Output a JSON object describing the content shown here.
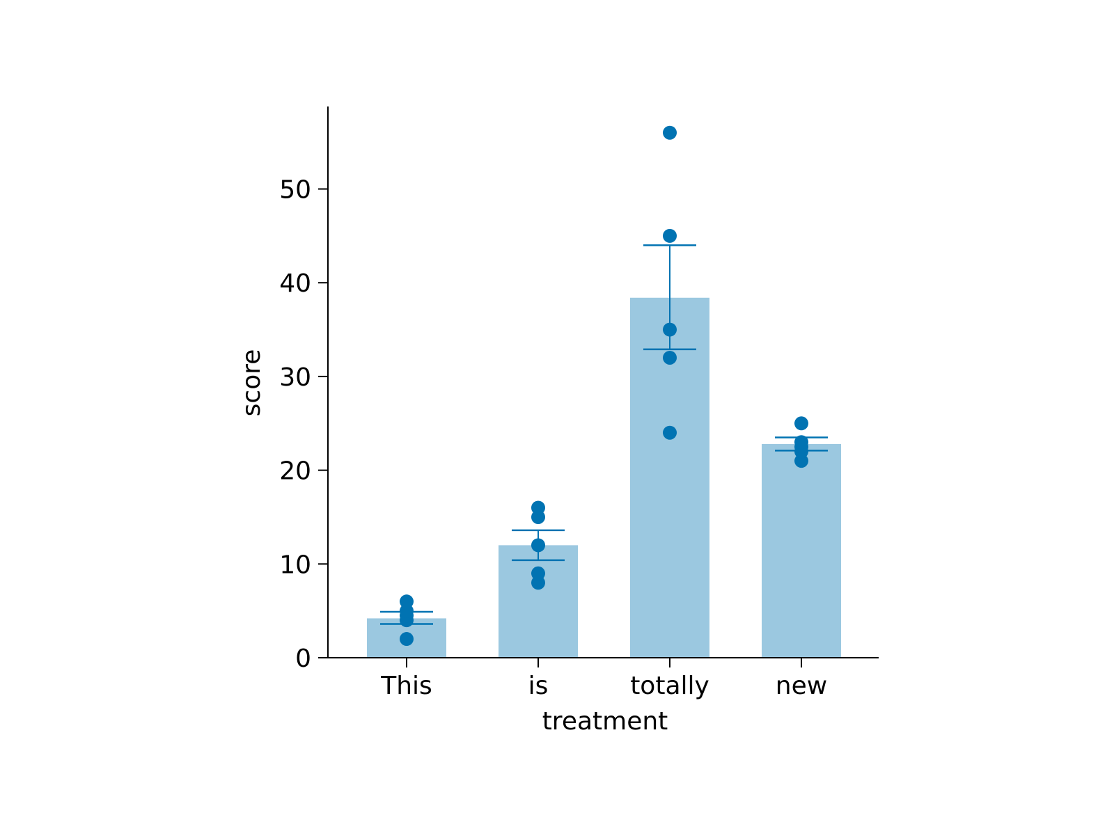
{
  "chart_data": {
    "type": "bar",
    "title": "",
    "xlabel": "treatment",
    "ylabel": "score",
    "categories": [
      "This",
      "is",
      "totally",
      "new"
    ],
    "values": [
      4.2,
      12.0,
      38.4,
      22.8
    ],
    "error_bars": [
      {
        "low": 3.6,
        "high": 4.9
      },
      {
        "low": 10.4,
        "high": 13.6
      },
      {
        "low": 32.9,
        "high": 44.0
      },
      {
        "low": 22.1,
        "high": 23.5
      }
    ],
    "points": [
      [
        2,
        4,
        4.5,
        5,
        6
      ],
      [
        8,
        9,
        12,
        15,
        16
      ],
      [
        24,
        32,
        35,
        45,
        56
      ],
      [
        21,
        22,
        22.5,
        23,
        25
      ]
    ],
    "ylim": [
      0,
      58.8
    ],
    "yticks": [
      0,
      10,
      20,
      30,
      40,
      50
    ],
    "grid": false,
    "colors": {
      "bar": "#9BC8E0",
      "point": "#0173B2",
      "errorbar": "#0173B2",
      "axis": "#000000"
    }
  }
}
